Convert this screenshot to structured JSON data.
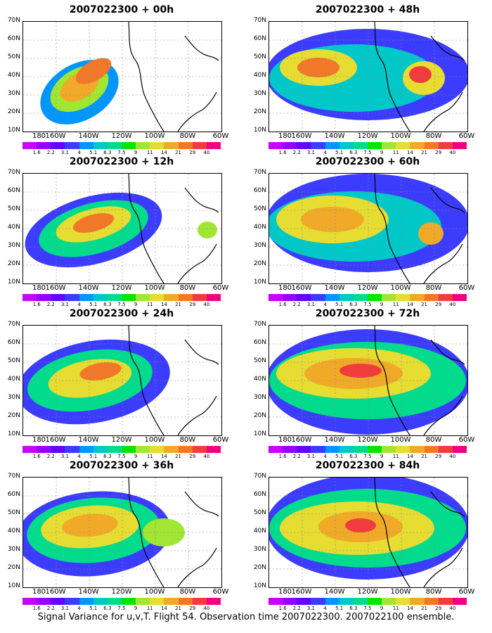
{
  "panels": [
    {
      "title": "2007022300 + 00h",
      "col": 0,
      "row": 0
    },
    {
      "title": "2007022300 + 48h",
      "col": 1,
      "row": 0
    },
    {
      "title": "2007022300 + 12h",
      "col": 0,
      "row": 1
    },
    {
      "title": "2007022300 + 60h",
      "col": 1,
      "row": 1
    },
    {
      "title": "2007022300 + 24h",
      "col": 0,
      "row": 2
    },
    {
      "title": "2007022300 + 72h",
      "col": 1,
      "row": 2
    },
    {
      "title": "2007022300 + 36h",
      "col": 0,
      "row": 3
    },
    {
      "title": "2007022300 + 84h",
      "col": 1,
      "row": 3
    }
  ],
  "lat_labels": [
    "70N",
    "60N",
    "50N",
    "40N",
    "30N",
    "20N",
    "10N"
  ],
  "lon_labels": [
    "180",
    "160W",
    "140W",
    "120W",
    "100W",
    "80W",
    "60W"
  ],
  "colorbar": {
    "labels": [
      "1.6",
      "2.2",
      "3.1",
      "4",
      "5.1",
      "6.3",
      "7.5",
      "9",
      "11",
      "14",
      "21",
      "29",
      "40"
    ],
    "colors": [
      "#c800ff",
      "#9600ff",
      "#6400ff",
      "#3c3cff",
      "#0096ff",
      "#00c8c8",
      "#00dc8c",
      "#00e600",
      "#a0e632",
      "#e6dc32",
      "#f0aa28",
      "#f07828",
      "#f03c3c",
      "#f00082"
    ]
  },
  "footer": "Signal Variance for u,v,T. Flight 54. Observation time 2007022300. 2007022100 ensemble."
}
